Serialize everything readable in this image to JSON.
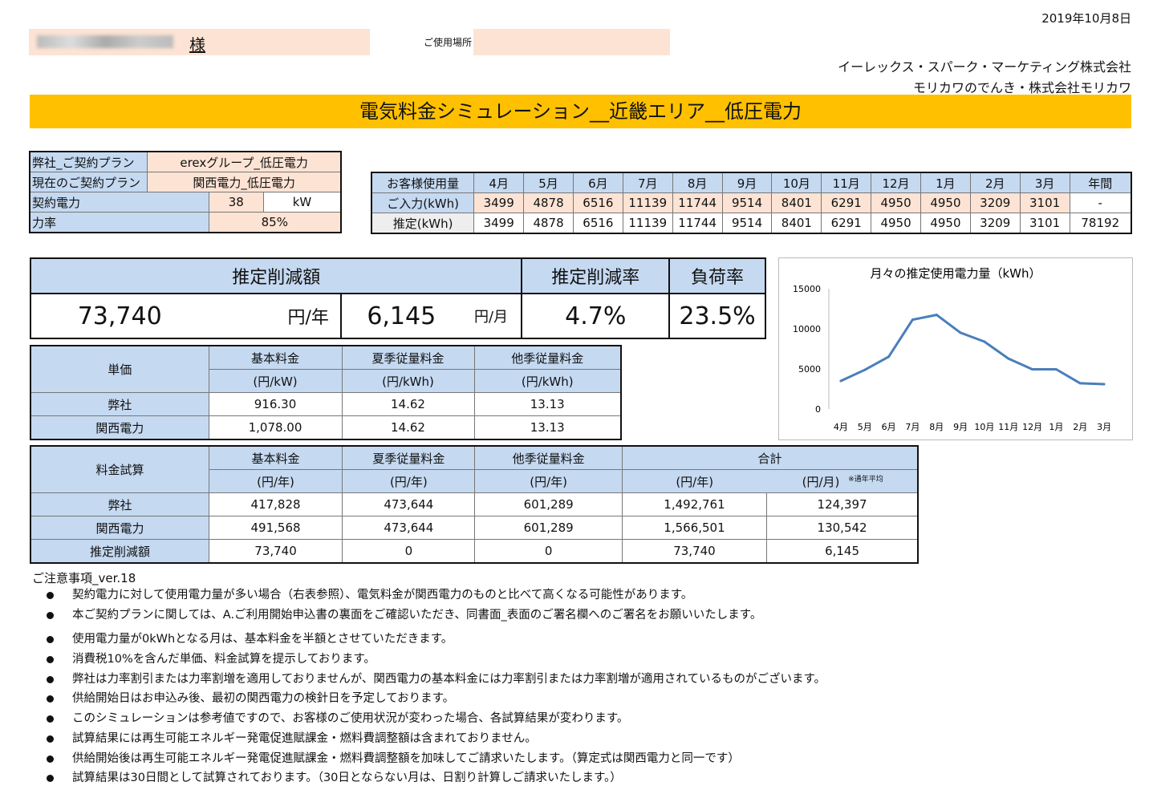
{
  "date": "2019年10月8日",
  "customer": {
    "honorific": "様",
    "place_label": "ご使用場所"
  },
  "companies": [
    "イーレックス・スパーク・マーケティング株式会社",
    "モリカワのでんき・株式会社モリカワ"
  ],
  "title": "電気料金シミュレーション__近畿エリア__低圧電力",
  "plan": {
    "rows": [
      {
        "label": "弊社_ご契約プラン",
        "value": "erexグループ_低圧電力"
      },
      {
        "label": "現在のご契約プラン",
        "value": "関西電力_低圧電力"
      }
    ],
    "contract": {
      "label": "契約電力",
      "value": "38",
      "unit": "kW"
    },
    "power_factor": {
      "label": "力率",
      "value": "85%"
    }
  },
  "usage": {
    "header_label": "お客様使用量",
    "months": [
      "4月",
      "5月",
      "6月",
      "7月",
      "8月",
      "9月",
      "10月",
      "11月",
      "12月",
      "1月",
      "2月",
      "3月",
      "年間"
    ],
    "input_label": "ご入力(kWh)",
    "input": [
      "3499",
      "4878",
      "6516",
      "11139",
      "11744",
      "9514",
      "8401",
      "6291",
      "4950",
      "4950",
      "3209",
      "3101",
      "-"
    ],
    "estimate_label": "推定(kWh)",
    "estimate": [
      "3499",
      "4878",
      "6516",
      "11139",
      "11744",
      "9514",
      "8401",
      "6291",
      "4950",
      "4950",
      "3209",
      "3101",
      "78192"
    ]
  },
  "reduction": {
    "amount_label": "推定削減額",
    "rate_label": "推定削減率",
    "load_label": "負荷率",
    "yearly": "73,740",
    "yearly_unit": "円/年",
    "monthly": "6,145",
    "monthly_unit": "円/月",
    "rate": "4.7%",
    "load": "23.5%"
  },
  "unit_price": {
    "label": "単価",
    "headers": [
      {
        "name": "基本料金",
        "unit": "(円/kW)"
      },
      {
        "name": "夏季従量料金",
        "unit": "(円/kWh)"
      },
      {
        "name": "他季従量料金",
        "unit": "(円/kWh)"
      }
    ],
    "rows": [
      {
        "name": "弊社",
        "values": [
          "916.30",
          "14.62",
          "13.13"
        ]
      },
      {
        "name": "関西電力",
        "values": [
          "1,078.00",
          "14.62",
          "13.13"
        ]
      }
    ]
  },
  "cost": {
    "label": "料金試算",
    "headers": [
      {
        "name": "基本料金",
        "unit": "(円/年)"
      },
      {
        "name": "夏季従量料金",
        "unit": "(円/年)"
      },
      {
        "name": "他季従量料金",
        "unit": "(円/年)"
      }
    ],
    "total_label": "合計",
    "total_year_unit": "(円/年)",
    "total_month_unit": "(円/月)",
    "avg_note": "※通年平均",
    "rows": [
      {
        "name": "弊社",
        "values": [
          "417,828",
          "473,644",
          "601,289",
          "1,492,761",
          "124,397"
        ]
      },
      {
        "name": "関西電力",
        "values": [
          "491,568",
          "473,644",
          "601,289",
          "1,566,501",
          "130,542"
        ]
      },
      {
        "name": "推定削減額",
        "values": [
          "73,740",
          "0",
          "0",
          "73,740",
          "6,145"
        ]
      }
    ]
  },
  "chart_data": {
    "type": "line",
    "title": "月々の推定使用電力量（kWh）",
    "categories": [
      "4月",
      "5月",
      "6月",
      "7月",
      "8月",
      "9月",
      "10月",
      "11月",
      "12月",
      "1月",
      "2月",
      "3月"
    ],
    "values": [
      3499,
      4878,
      6516,
      11139,
      11744,
      9514,
      8401,
      6291,
      4950,
      4950,
      3209,
      3101
    ],
    "ylim": [
      0,
      15000
    ],
    "yticks": [
      "0",
      "5000",
      "10000",
      "15000"
    ],
    "line_color": "#4a7ebb",
    "grid": false,
    "legend": false
  },
  "notes": {
    "title": "ご注意事項_ver.18",
    "items": [
      "契約電力に対して使用電力量が多い場合（右表参照）、電気料金が関西電力のものと比べて高くなる可能性があります。",
      "本ご契約プランに関しては、A.ご利用開始申込書の裏面をご確認いただき、同書面_表面のご署名欄へのご署名をお願いいたします。",
      "使用電力量が0kWhとなる月は、基本料金を半額とさせていただきます。",
      "消費税10%を含んだ単価、料金試算を提示しております。",
      "弊社は力率割引または力率割増を適用しておりませんが、関西電力の基本料金には力率割引または力率割増が適用されているものがございます。",
      "供給開始日はお申込み後、最初の関西電力の検針日を予定しております。",
      "このシミュレーションは参考値ですので、お客様のご使用状況が変わった場合、各試算結果が変わります。",
      "試算結果には再生可能エネルギー発電促進賦課金・燃料費調整額は含まれておりません。",
      "供給開始後は再生可能エネルギー発電促進賦課金・燃料費調整額を加味してご請求いたします。（算定式は関西電力と同一です）",
      "試算結果は30日間として試算されております。（30日とならない月は、日割り計算しご請求いたします。）"
    ]
  }
}
